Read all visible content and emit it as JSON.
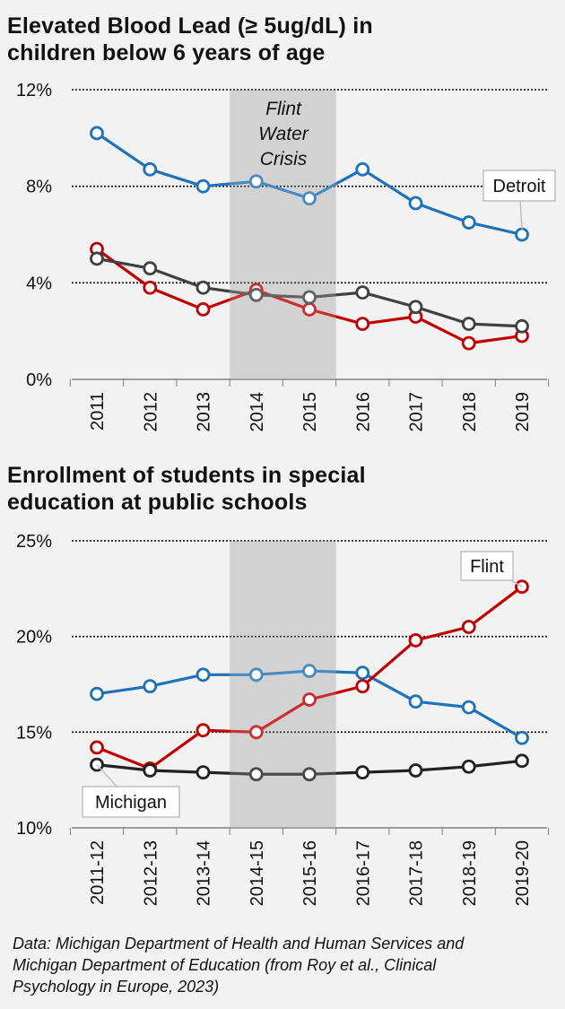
{
  "charts": [
    {
      "title_line1": "Elevated Blood Lead (≥ 5ug/dL) in",
      "title_line2": "children below 6 years of age"
    },
    {
      "title_line1": "Enrollment of students in special",
      "title_line2": "education at public schools"
    }
  ],
  "shade_label": [
    "Flint",
    "Water",
    "Crisis"
  ],
  "source_line1": "Data: Michigan Department of Health and Human Services and",
  "source_line2": "Michigan Department of Education (from Roy et al., Clinical",
  "source_line3": "Psychology in Europe, 2023)",
  "colors": {
    "detroit": "#1f72b8",
    "flint": "#c00000",
    "michigan": "#404040",
    "shade": "#c8c8c8"
  },
  "chart_data": [
    {
      "type": "line",
      "title": "Elevated Blood Lead (≥ 5ug/dL) in children below 6 years of age",
      "categories": [
        "2011",
        "2012",
        "2013",
        "2014",
        "2015",
        "2016",
        "2017",
        "2018",
        "2019"
      ],
      "ylim": [
        0,
        12
      ],
      "yticks": [
        0,
        4,
        8,
        12
      ],
      "ytick_labels": [
        "0%",
        "4%",
        "8%",
        "12%"
      ],
      "shaded_range": [
        "2014",
        "2015"
      ],
      "grid": true,
      "series": [
        {
          "name": "Detroit",
          "color": "#1f72b8",
          "values": [
            10.2,
            8.7,
            8.0,
            8.2,
            7.5,
            8.7,
            7.3,
            6.5,
            6.0
          ]
        },
        {
          "name": "",
          "color": "#c00000",
          "values": [
            5.4,
            3.8,
            2.9,
            3.7,
            2.9,
            2.3,
            2.6,
            1.5,
            1.8
          ]
        },
        {
          "name": "",
          "color": "#404040",
          "values": [
            5.0,
            4.6,
            3.8,
            3.5,
            3.4,
            3.6,
            3.0,
            2.3,
            2.2
          ]
        }
      ],
      "annotation": {
        "text": "Detroit",
        "series": 0
      }
    },
    {
      "type": "line",
      "title": "Enrollment of students in special education at public schools",
      "categories": [
        "2011-12",
        "2012-13",
        "2013-14",
        "2014-15",
        "2015-16",
        "2016-17",
        "2017-18",
        "2018-19",
        "2019-20"
      ],
      "ylim": [
        10,
        25
      ],
      "yticks": [
        10,
        15,
        20,
        25
      ],
      "ytick_labels": [
        "10%",
        "15%",
        "20%",
        "25%"
      ],
      "shaded_range": [
        "2014-15",
        "2015-16"
      ],
      "grid": true,
      "series": [
        {
          "name": "",
          "color": "#1f72b8",
          "values": [
            17.0,
            17.4,
            18.0,
            18.0,
            18.2,
            18.1,
            16.6,
            16.3,
            14.7
          ]
        },
        {
          "name": "Flint",
          "color": "#c00000",
          "values": [
            14.2,
            13.1,
            15.1,
            15.0,
            16.7,
            17.4,
            19.8,
            20.5,
            22.6
          ]
        },
        {
          "name": "Michigan",
          "color": "#222222",
          "values": [
            13.3,
            13.0,
            12.9,
            12.8,
            12.8,
            12.9,
            13.0,
            13.2,
            13.5
          ]
        }
      ],
      "annotations": [
        {
          "text": "Flint",
          "series": 1
        },
        {
          "text": "Michigan",
          "series": 2
        }
      ]
    }
  ]
}
